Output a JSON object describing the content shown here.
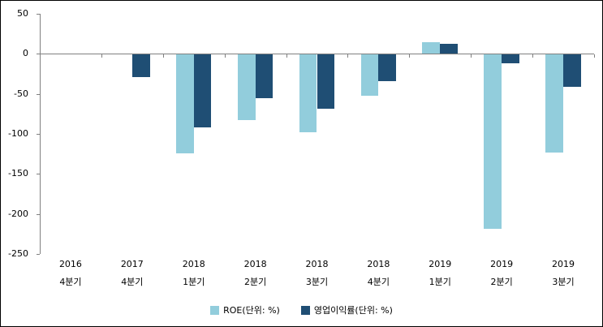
{
  "chart_data": {
    "type": "bar",
    "title": "",
    "xlabel": "",
    "ylabel": "",
    "categories": [
      {
        "year": "2016",
        "quarter": "4분기"
      },
      {
        "year": "2017",
        "quarter": "4분기"
      },
      {
        "year": "2018",
        "quarter": "1분기"
      },
      {
        "year": "2018",
        "quarter": "2분기"
      },
      {
        "year": "2018",
        "quarter": "3분기"
      },
      {
        "year": "2018",
        "quarter": "4분기"
      },
      {
        "year": "2019",
        "quarter": "1분기"
      },
      {
        "year": "2019",
        "quarter": "2분기"
      },
      {
        "year": "2019",
        "quarter": "3분기"
      }
    ],
    "series": [
      {
        "name": "ROE(단위: %)",
        "color": "#92CDDC",
        "values": [
          0,
          0,
          -123,
          -82,
          -97,
          -51,
          15,
          -218,
          -122
        ]
      },
      {
        "name": "영업이익률(단위: %)",
        "color": "#1F4E74",
        "values": [
          0,
          -28,
          -91,
          -54,
          -68,
          -33,
          12,
          -11,
          -40
        ]
      }
    ],
    "y_axis": {
      "min": -250,
      "max": 50,
      "tick_step": 50,
      "ticks": [
        50,
        0,
        -50,
        -100,
        -150,
        -200,
        -250
      ]
    },
    "legend_position": "bottom",
    "grid": "zero-line-only",
    "colors": {
      "axis": "#808080",
      "text": "#000000",
      "background": "#FFFFFF",
      "frame_border": "#000000"
    }
  }
}
